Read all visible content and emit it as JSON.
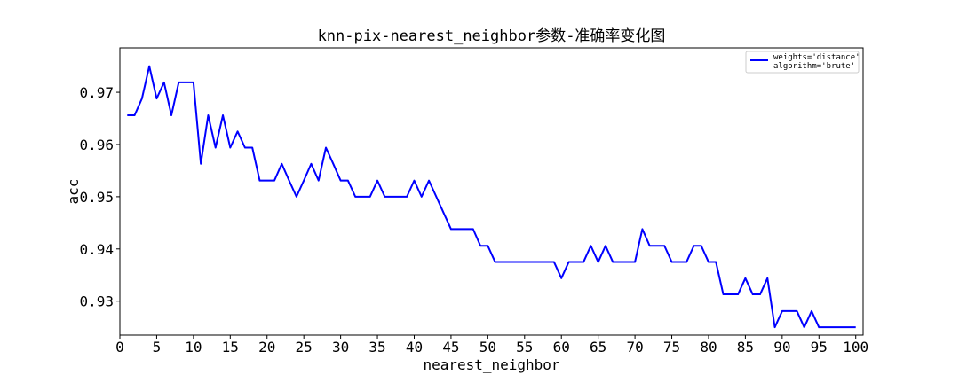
{
  "chart_data": {
    "type": "line",
    "title": "knn-pix-nearest_neighbor参数-准确率变化图",
    "xlabel": "nearest_neighbor",
    "ylabel": "acc",
    "xlim": [
      0,
      101
    ],
    "ylim": [
      0.9235,
      0.9785
    ],
    "xticks": [
      0,
      5,
      10,
      15,
      20,
      25,
      30,
      35,
      40,
      45,
      50,
      55,
      60,
      65,
      70,
      75,
      80,
      85,
      90,
      95,
      100
    ],
    "yticks": [
      0.93,
      0.94,
      0.95,
      0.96,
      0.97
    ],
    "ytick_labels": [
      "0.93",
      "0.94",
      "0.95",
      "0.96",
      "0.97"
    ],
    "grid": false,
    "legend_position": "upper right",
    "series": [
      {
        "name": "weights='distance'\nalgorithm='brute'",
        "color": "#0000ff",
        "x": [
          1,
          2,
          3,
          4,
          5,
          6,
          7,
          8,
          9,
          10,
          11,
          12,
          13,
          14,
          15,
          16,
          17,
          18,
          19,
          20,
          21,
          22,
          23,
          24,
          25,
          26,
          27,
          28,
          29,
          30,
          31,
          32,
          33,
          34,
          35,
          36,
          37,
          38,
          39,
          40,
          41,
          42,
          43,
          44,
          45,
          46,
          47,
          48,
          49,
          50,
          51,
          52,
          53,
          54,
          55,
          56,
          57,
          58,
          59,
          60,
          61,
          62,
          63,
          64,
          65,
          66,
          67,
          68,
          69,
          70,
          71,
          72,
          73,
          74,
          75,
          76,
          77,
          78,
          79,
          80,
          81,
          82,
          83,
          84,
          85,
          86,
          87,
          88,
          89,
          90,
          91,
          92,
          93,
          94,
          95,
          96,
          97,
          98,
          99,
          100
        ],
        "values": [
          0.9656,
          0.9656,
          0.9688,
          0.975,
          0.9688,
          0.9719,
          0.9656,
          0.9719,
          0.9719,
          0.9719,
          0.9563,
          0.9656,
          0.9594,
          0.9656,
          0.9594,
          0.9625,
          0.9594,
          0.9594,
          0.9531,
          0.9531,
          0.9531,
          0.9563,
          0.9531,
          0.95,
          0.9531,
          0.9563,
          0.9531,
          0.9594,
          0.9563,
          0.9531,
          0.9531,
          0.95,
          0.95,
          0.95,
          0.9531,
          0.95,
          0.95,
          0.95,
          0.95,
          0.9531,
          0.95,
          0.9531,
          0.95,
          0.9469,
          0.9438,
          0.9438,
          0.9438,
          0.9438,
          0.9406,
          0.9406,
          0.9375,
          0.9375,
          0.9375,
          0.9375,
          0.9375,
          0.9375,
          0.9375,
          0.9375,
          0.9375,
          0.9344,
          0.9375,
          0.9375,
          0.9375,
          0.9406,
          0.9375,
          0.9406,
          0.9375,
          0.9375,
          0.9375,
          0.9375,
          0.9438,
          0.9406,
          0.9406,
          0.9406,
          0.9375,
          0.9375,
          0.9375,
          0.9406,
          0.9406,
          0.9375,
          0.9375,
          0.9313,
          0.9313,
          0.9313,
          0.9344,
          0.9313,
          0.9313,
          0.9344,
          0.925,
          0.9281,
          0.9281,
          0.9281,
          0.925,
          0.9281,
          0.925,
          0.925,
          0.925,
          0.925,
          0.925,
          0.925
        ]
      }
    ]
  }
}
